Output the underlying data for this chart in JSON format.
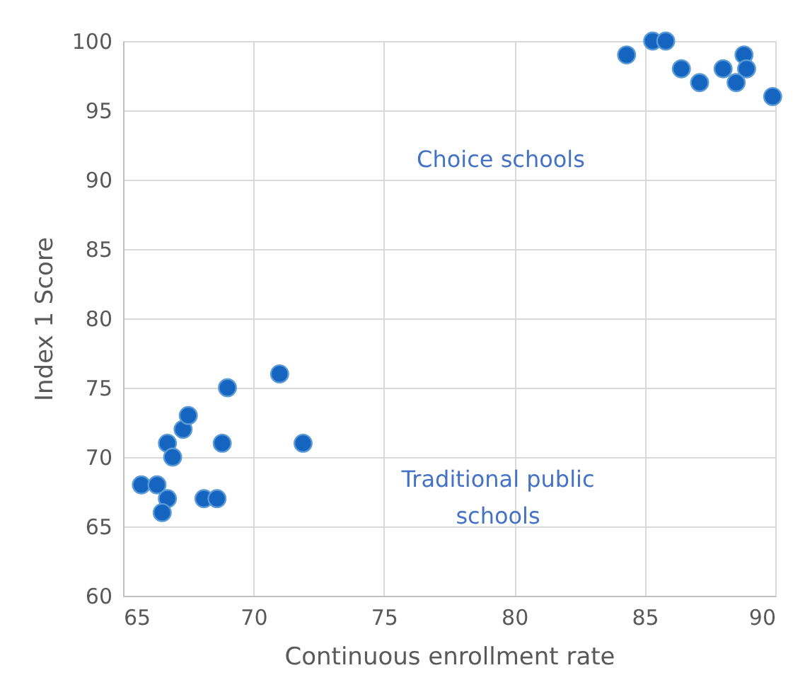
{
  "chart_data": {
    "type": "scatter",
    "xlabel": "Continuous enrollment rate",
    "ylabel": "Index 1 Score",
    "x": [
      65.7,
      66.3,
      66.7,
      66.5,
      66.7,
      66.9,
      67.3,
      67.5,
      69.0,
      68.8,
      68.1,
      68.6,
      71.0,
      71.9,
      84.3,
      85.3,
      85.8,
      86.4,
      87.1,
      88.0,
      88.8,
      88.9,
      88.5,
      89.9
    ],
    "series": [
      {
        "color": "#1565c0",
        "values": [
          68,
          68,
          67,
          66,
          71,
          70,
          72,
          73,
          75,
          71,
          67,
          67,
          76,
          71,
          99,
          100,
          100,
          98,
          97,
          98,
          99,
          98,
          97,
          96
        ]
      }
    ],
    "xlim": [
      65,
      90
    ],
    "xticks": [
      65,
      70,
      75,
      80,
      85,
      90
    ],
    "ylim": [
      60,
      100
    ],
    "yticks": [
      60,
      65,
      70,
      75,
      80,
      85,
      90,
      95,
      100
    ],
    "grid": true,
    "marker": "circle",
    "annotations": [
      "Choice schools",
      "Traditional public\nschools"
    ]
  }
}
